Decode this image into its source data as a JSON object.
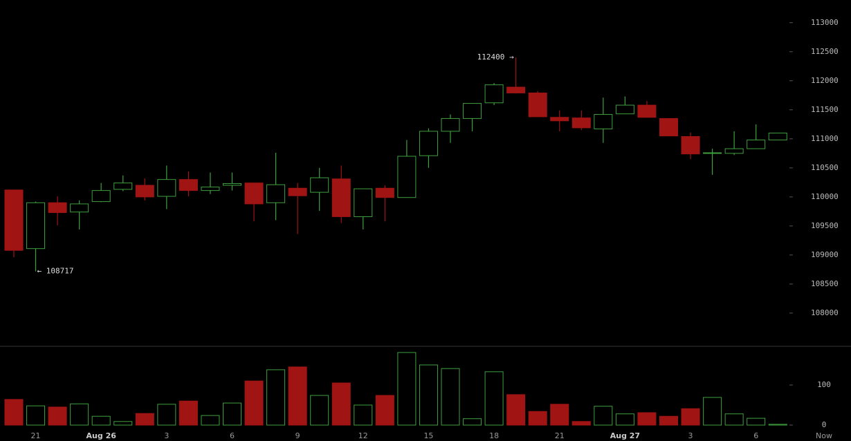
{
  "chart_data": {
    "type": "candlestick",
    "categories": [
      null,
      "21",
      null,
      null,
      "Aug 26",
      null,
      null,
      "3",
      null,
      null,
      "6",
      null,
      null,
      "9",
      null,
      null,
      "12",
      null,
      null,
      "15",
      null,
      null,
      "18",
      null,
      null,
      "21",
      null,
      null,
      "Aug 27",
      null,
      null,
      "3",
      null,
      null,
      "6",
      null
    ],
    "x_end_label": "Now",
    "open": [
      110120,
      109110,
      109900,
      109740,
      109920,
      110130,
      110200,
      110010,
      110300,
      110110,
      110200,
      110240,
      109900,
      110150,
      110080,
      110310,
      109660,
      110150,
      109990,
      110710,
      111130,
      111350,
      111620,
      111890,
      111790,
      111370,
      111360,
      111170,
      111430,
      111580,
      111350,
      111040,
      110750,
      110750,
      110830,
      110980
    ],
    "high": [
      110120,
      109920,
      110010,
      109940,
      110240,
      110370,
      110320,
      110540,
      110440,
      110420,
      110420,
      110240,
      110760,
      110240,
      110500,
      110540,
      110140,
      110200,
      110980,
      111180,
      111420,
      111610,
      111960,
      112400,
      111820,
      111490,
      111490,
      111710,
      111730,
      111650,
      111350,
      111110,
      110830,
      111130,
      111250,
      111100
    ],
    "low": [
      108960,
      108717,
      109510,
      109440,
      109910,
      110100,
      109940,
      109790,
      110010,
      110050,
      110110,
      109580,
      109600,
      109360,
      109760,
      109550,
      109440,
      109580,
      109990,
      110500,
      110930,
      111130,
      111580,
      111780,
      111380,
      111130,
      111150,
      110930,
      111430,
      111370,
      111050,
      110650,
      110380,
      110720,
      110830,
      110980
    ],
    "close": [
      109080,
      109900,
      109730,
      109880,
      110110,
      110240,
      110000,
      110300,
      110110,
      110170,
      110230,
      109880,
      110210,
      110020,
      110330,
      109660,
      110140,
      109990,
      110700,
      111130,
      111350,
      111610,
      111930,
      111790,
      111380,
      111310,
      111190,
      111420,
      111580,
      111370,
      111050,
      110740,
      110760,
      110830,
      110980,
      111100
    ],
    "volume": [
      64,
      48,
      45,
      53,
      22,
      9,
      29,
      52,
      60,
      24,
      55,
      110,
      138,
      145,
      74,
      105,
      50,
      74,
      181,
      150,
      141,
      16,
      133,
      76,
      34,
      52,
      9,
      47,
      28,
      31,
      22,
      41,
      69,
      28,
      17,
      2
    ],
    "up_color": "#3fa03f",
    "down_color": "#a01414",
    "ylim": [
      107440,
      113390
    ],
    "yticks": [
      108000,
      108500,
      109000,
      109500,
      110000,
      110500,
      111000,
      111500,
      112000,
      112500,
      113000
    ],
    "volume_ylim": [
      0,
      193
    ],
    "volume_yticks": [
      0,
      100
    ],
    "annotations": [
      {
        "label": "112400 →",
        "value": 112400
      },
      {
        "label": "← 108717",
        "value": 108717
      }
    ]
  }
}
